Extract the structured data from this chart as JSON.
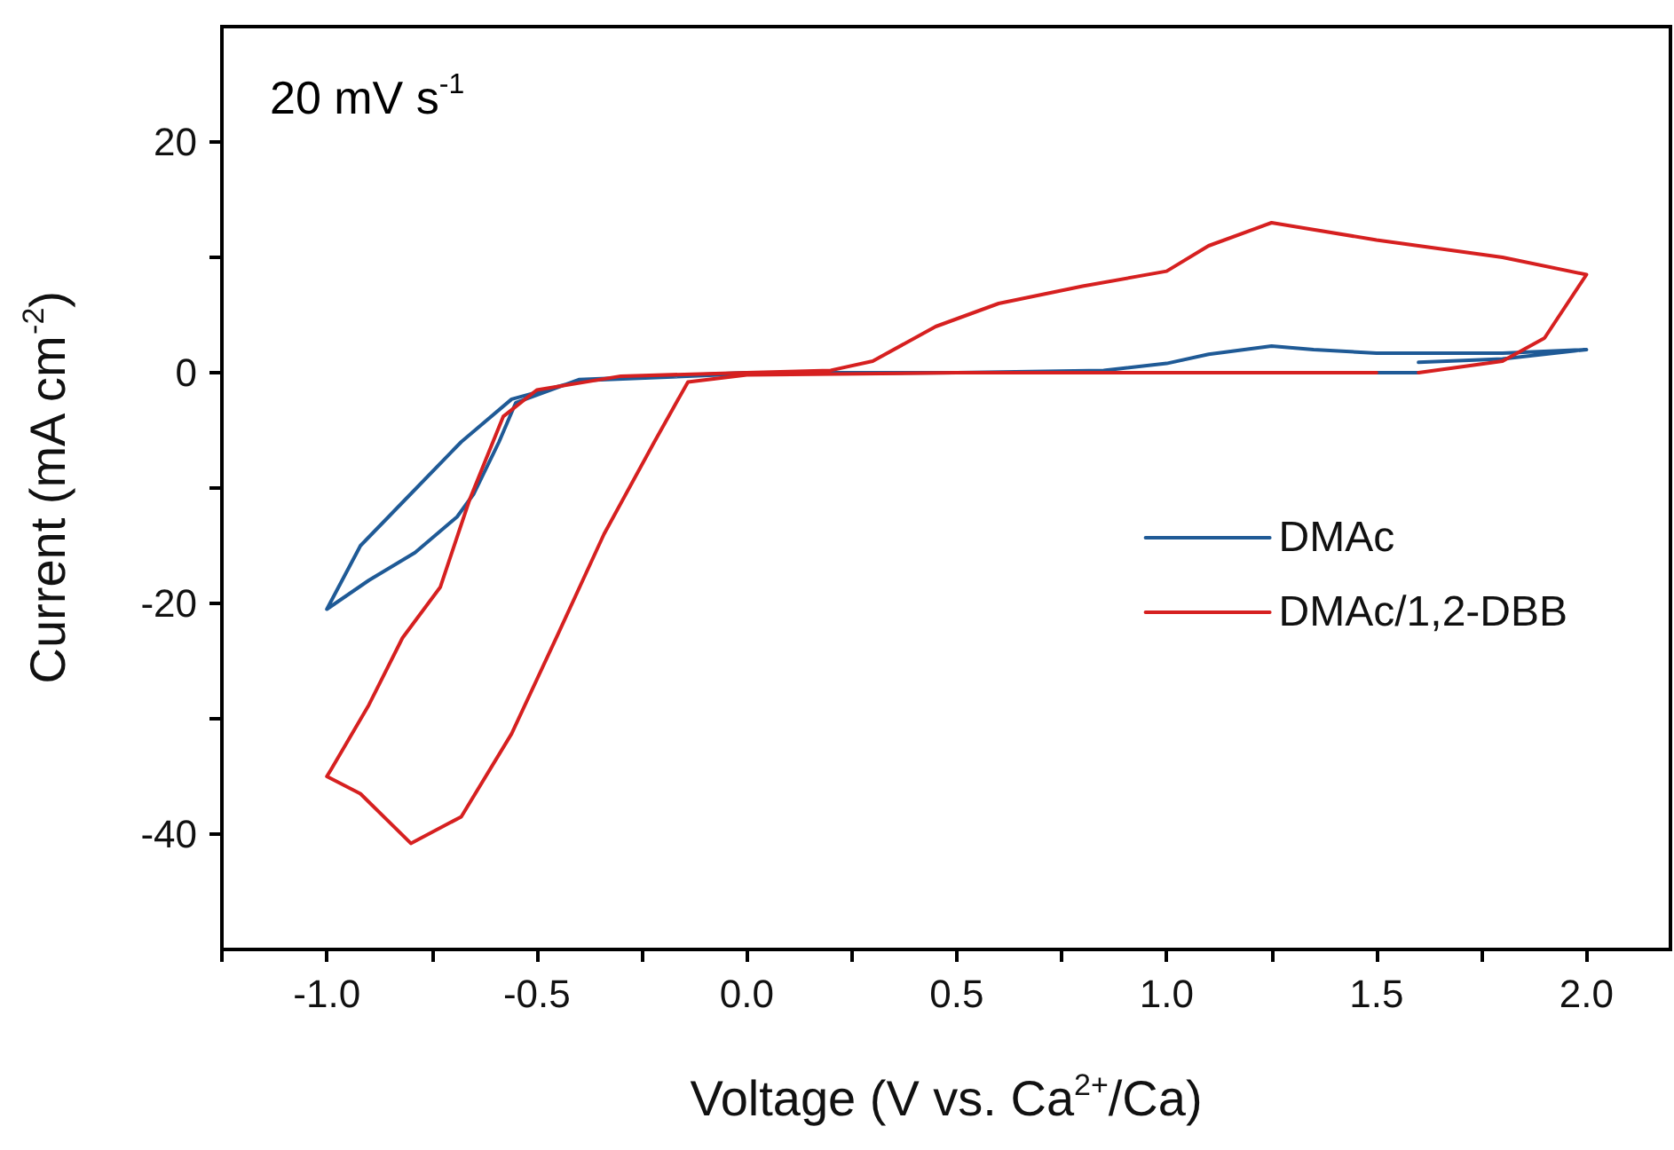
{
  "chart_data": {
    "type": "line",
    "xlabel": "Voltage (V vs. Ca$^{2+}$/Ca)",
    "ylabel": "Current (mA cm$^{-2}$)",
    "annotations": [
      "20 mV s$^{-1}$"
    ],
    "legend": "right",
    "grid": false,
    "marker": "none",
    "line_style": "solid",
    "xlim": [
      -1.25,
      2.2
    ],
    "ylim": [
      -50,
      30
    ],
    "xticks": [
      {
        "value": -1.25,
        "label": null
      },
      {
        "value": -1.0,
        "label": "-1.0"
      },
      {
        "value": -0.75,
        "label": null
      },
      {
        "value": -0.5,
        "label": "-0.5"
      },
      {
        "value": -0.25,
        "label": null
      },
      {
        "value": 0,
        "label": "0.0"
      },
      {
        "value": 0.25,
        "label": null
      },
      {
        "value": 0.5,
        "label": "0.5"
      },
      {
        "value": 0.75,
        "label": null
      },
      {
        "value": 1.0,
        "label": "1.0"
      },
      {
        "value": 1.25,
        "label": null
      },
      {
        "value": 1.5,
        "label": "1.5"
      },
      {
        "value": 1.75,
        "label": null
      },
      {
        "value": 2.0,
        "label": "2.0"
      }
    ],
    "yticks": [
      {
        "value": -40,
        "label": "-40"
      },
      {
        "value": -30,
        "label": null
      },
      {
        "value": -20,
        "label": "-20"
      },
      {
        "value": -10,
        "label": null
      },
      {
        "value": 0,
        "label": "0"
      },
      {
        "value": 10,
        "label": null
      },
      {
        "value": 20,
        "label": "20"
      }
    ],
    "series": [
      {
        "name": "DMAc",
        "color": "#1f5a96",
        "x": [
          1.6,
          1.8,
          2.0,
          1.8,
          1.5,
          1.35,
          1.25,
          1.1,
          1.0,
          0.85,
          0.5,
          0,
          -0.4,
          -0.56,
          -0.68,
          -0.8,
          -0.92,
          -1.0,
          -0.9,
          -0.79,
          -0.69,
          -0.65,
          -0.59,
          -0.55,
          -0.4,
          0,
          1.6
        ],
        "values": [
          0.9,
          1.2,
          2.0,
          1.7,
          1.7,
          2.0,
          2.3,
          1.6,
          0.8,
          0.2,
          0,
          -0.1,
          -0.7,
          -2.3,
          -6,
          -10.5,
          -15,
          -20.5,
          -18,
          -15.6,
          -12.5,
          -10.5,
          -6,
          -2.6,
          -0.6,
          0,
          0
        ]
      },
      {
        "name": "DMAc/1,2-DBB",
        "color": "#d62020",
        "x": [
          1.6,
          1.8,
          1.9,
          2.0,
          1.8,
          1.5,
          1.25,
          1.1,
          1.0,
          0.8,
          0.6,
          0.45,
          0.3,
          0.2,
          0,
          -0.3,
          -0.5,
          -0.58,
          -0.66,
          -0.73,
          -0.82,
          -0.9,
          -0.99,
          -1.0,
          -0.92,
          -0.8,
          -0.68,
          -0.56,
          -0.45,
          -0.34,
          -0.22,
          -0.14,
          0,
          0.5,
          1.0,
          1.5
        ],
        "values": [
          0,
          1,
          3,
          8.5,
          10,
          11.5,
          13,
          11,
          8.8,
          7.5,
          6,
          4,
          1,
          0.2,
          0,
          -0.3,
          -1.5,
          -3.8,
          -11,
          -18.6,
          -23,
          -28.8,
          -34.4,
          -35,
          -36.5,
          -40.8,
          -38.5,
          -31.3,
          -22.7,
          -14,
          -6,
          -0.8,
          -0.2,
          0,
          0,
          0
        ]
      }
    ]
  }
}
